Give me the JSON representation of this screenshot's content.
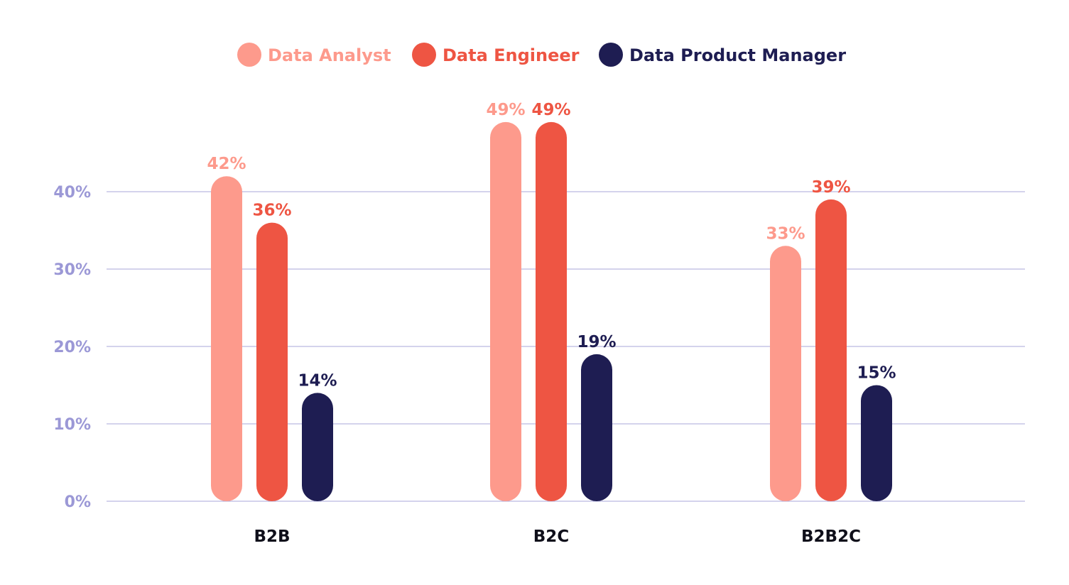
{
  "chart_data": {
    "type": "bar",
    "categories": [
      "B2B",
      "B2C",
      "B2B2C"
    ],
    "series": [
      {
        "name": "Data Analyst",
        "values": [
          42,
          49,
          33
        ],
        "labels": [
          "42%",
          "49%",
          "33%"
        ],
        "color": "#fd9a8c"
      },
      {
        "name": "Data Engineer",
        "values": [
          36,
          49,
          39
        ],
        "labels": [
          "36%",
          "49%",
          "39%"
        ],
        "color": "#ee5543"
      },
      {
        "name": "Data Product Manager",
        "values": [
          14,
          19,
          15
        ],
        "labels": [
          "14%",
          "19%",
          "15%"
        ],
        "color": "#1e1d52"
      }
    ],
    "y_ticks": [
      {
        "value": 0,
        "label": "0%"
      },
      {
        "value": 10,
        "label": "10%"
      },
      {
        "value": 20,
        "label": "20%"
      },
      {
        "value": 30,
        "label": "30%"
      },
      {
        "value": 40,
        "label": "40%"
      }
    ],
    "ylim": [
      0,
      50
    ],
    "legend_position": "top-center",
    "grid": true,
    "title": "",
    "xlabel": "",
    "ylabel": ""
  },
  "colors": {
    "gridline": "#a9a7d8",
    "tick_label": "#9b98d6",
    "category_label": "#0f0f1a"
  }
}
